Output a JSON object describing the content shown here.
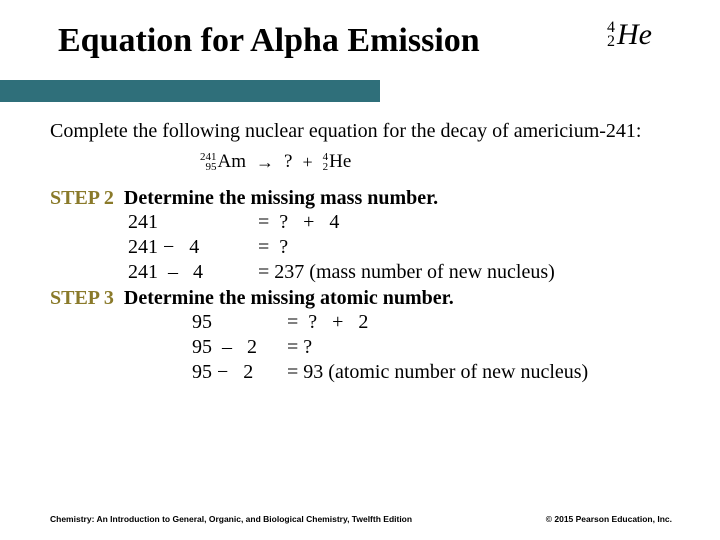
{
  "title": "Equation for Alpha Emission",
  "alpha": {
    "mass": "4",
    "atomic": "2",
    "symbol": "He"
  },
  "intro": "Complete the following nuclear equation for the decay of americium-241:",
  "reaction": {
    "left": {
      "mass": "241",
      "atomic": "95",
      "symbol": "Am"
    },
    "arrow": "→",
    "unknown": "?",
    "plus": "+",
    "right": {
      "mass": "4",
      "atomic": "2",
      "symbol": "He"
    }
  },
  "step2": {
    "label": "STEP 2",
    "text": "Determine the missing mass number.",
    "lines": {
      "l1a": "241",
      "l1b": "=  ?   +   4",
      "l2a": "241 −   4",
      "l2b": "=  ?",
      "l3a": "241  –   4",
      "l3b": "= 237 (mass number of new nucleus)"
    }
  },
  "step3": {
    "label": "STEP 3",
    "text": "Determine the missing atomic number.",
    "lines": {
      "l1a": "95",
      "l1b": "=  ?   +   2",
      "l2a": "95  –   2",
      "l2b": "= ?",
      "l3a": "95 −   2",
      "l3b": "= 93 (atomic number of new nucleus)"
    }
  },
  "footer": {
    "left": "Chemistry: An Introduction to General, Organic, and Biological Chemistry, Twelfth Edition",
    "right": "© 2015 Pearson Education, Inc."
  },
  "colors": {
    "title_bar": "#2f6f7a",
    "step_label": "#8a7a2a",
    "background": "#ffffff",
    "text": "#000000"
  }
}
